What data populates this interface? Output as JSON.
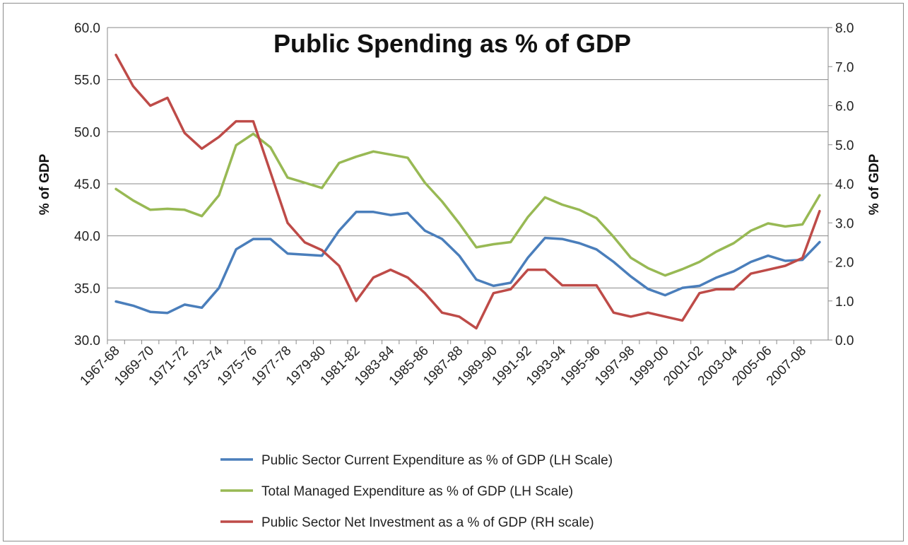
{
  "chart_data": {
    "type": "line",
    "title": "Public Spending as % of GDP",
    "y_left_label": "% of GDP",
    "y_right_label": "% of GDP",
    "y_left_range": [
      30,
      60
    ],
    "y_right_range": [
      0,
      8
    ],
    "y_left_ticks": [
      "30.0",
      "35.0",
      "40.0",
      "45.0",
      "50.0",
      "55.0",
      "60.0"
    ],
    "y_right_ticks": [
      "0.0",
      "1.0",
      "2.0",
      "3.0",
      "4.0",
      "5.0",
      "6.0",
      "7.0",
      "8.0"
    ],
    "grid": true,
    "legend_position": "bottom",
    "x_tick_labels": [
      "1967-68",
      "1969-70",
      "1971-72",
      "1973-74",
      "1975-76",
      "1977-78",
      "1979-80",
      "1981-82",
      "1983-84",
      "1985-86",
      "1987-88",
      "1989-90",
      "1991-92",
      "1993-94",
      "1995-96",
      "1997-98",
      "1999-00",
      "2001-02",
      "2003-04",
      "2005-06",
      "2007-08"
    ],
    "categories": [
      "1967-68",
      "1968-69",
      "1969-70",
      "1970-71",
      "1971-72",
      "1972-73",
      "1973-74",
      "1974-75",
      "1975-76",
      "1976-77",
      "1977-78",
      "1978-79",
      "1979-80",
      "1980-81",
      "1981-82",
      "1982-83",
      "1983-84",
      "1984-85",
      "1985-86",
      "1986-87",
      "1987-88",
      "1988-89",
      "1989-90",
      "1990-91",
      "1991-92",
      "1992-93",
      "1993-94",
      "1994-95",
      "1995-96",
      "1996-97",
      "1997-98",
      "1998-99",
      "1999-00",
      "2000-01",
      "2001-02",
      "2002-03",
      "2003-04",
      "2004-05",
      "2005-06",
      "2006-07",
      "2007-08",
      "2008-09"
    ],
    "series": [
      {
        "name": "Public Sector Current Expenditure as % of GDP (LH Scale)",
        "axis": "left",
        "color": "#4a7ebb",
        "values": [
          33.7,
          33.3,
          32.7,
          32.6,
          33.4,
          33.1,
          35.0,
          38.7,
          39.7,
          39.7,
          38.3,
          38.2,
          38.1,
          40.5,
          42.3,
          42.3,
          42.0,
          42.2,
          40.5,
          39.7,
          38.1,
          35.8,
          35.2,
          35.5,
          37.9,
          39.8,
          39.7,
          39.3,
          38.7,
          37.5,
          36.1,
          34.9,
          34.3,
          35.0,
          35.2,
          36.0,
          36.6,
          37.5,
          38.1,
          37.6,
          37.7,
          39.4
        ]
      },
      {
        "name": "Total Managed Expenditure as % of GDP (LH Scale)",
        "axis": "left",
        "color": "#98b954",
        "values": [
          44.5,
          43.4,
          42.5,
          42.6,
          42.5,
          41.9,
          43.9,
          48.7,
          49.8,
          48.5,
          45.6,
          45.1,
          44.6,
          47.0,
          47.6,
          48.1,
          47.8,
          47.5,
          45.1,
          43.3,
          41.2,
          38.9,
          39.2,
          39.4,
          41.8,
          43.7,
          43.0,
          42.5,
          41.7,
          39.9,
          37.9,
          36.9,
          36.2,
          36.8,
          37.5,
          38.5,
          39.3,
          40.5,
          41.2,
          40.9,
          41.1,
          43.9
        ]
      },
      {
        "name": "Public Sector Net Investment as a % of GDP (RH scale)",
        "axis": "right",
        "color": "#be4b48",
        "values": [
          7.3,
          6.5,
          6.0,
          6.2,
          5.3,
          4.9,
          5.2,
          5.6,
          5.6,
          4.3,
          3.0,
          2.5,
          2.3,
          1.9,
          1.0,
          1.6,
          1.8,
          1.6,
          1.2,
          0.7,
          0.6,
          0.3,
          1.2,
          1.3,
          1.8,
          1.8,
          1.4,
          1.4,
          1.4,
          0.7,
          0.6,
          0.7,
          0.6,
          0.5,
          1.2,
          1.3,
          1.3,
          1.7,
          1.8,
          1.9,
          2.1,
          3.3
        ]
      }
    ]
  }
}
